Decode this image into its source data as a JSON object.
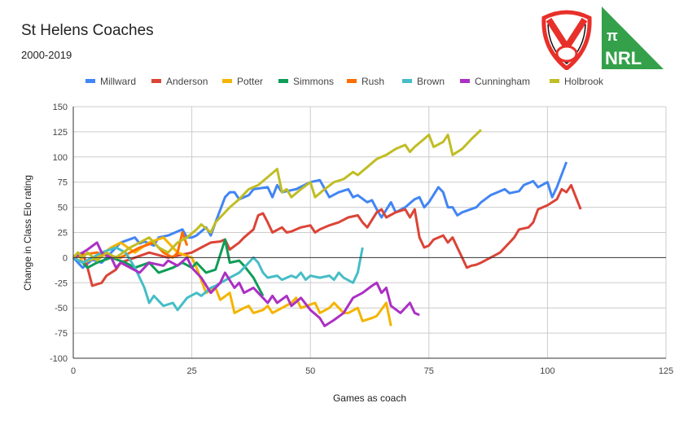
{
  "header": {
    "title": "St Helens Coaches",
    "subtitle": "2000-2019"
  },
  "logos": {
    "club_text": "St.Helens R.F.C.",
    "nrl_pi": "π",
    "nrl_text": "NRL",
    "nrl_color": "#34a04a",
    "club_color": "#e8302a"
  },
  "chart_data": {
    "type": "line",
    "title": "St Helens Coaches",
    "subtitle": "2000-2019",
    "xlabel": "Games as coach",
    "ylabel": "Change in Class Elo rating",
    "xlim": [
      0,
      125
    ],
    "ylim": [
      -100,
      150
    ],
    "xticks": [
      0,
      25,
      50,
      75,
      100,
      125
    ],
    "yticks": [
      -100,
      -75,
      -50,
      -25,
      0,
      25,
      50,
      75,
      100,
      125,
      150
    ],
    "grid": true,
    "legend": "top",
    "series": [
      {
        "name": "Millward",
        "color": "#4285f4",
        "x": [
          0,
          2,
          4,
          6,
          8,
          10,
          13,
          14,
          15,
          17,
          18,
          20,
          23,
          24,
          25,
          26,
          28,
          29,
          30,
          32,
          33,
          34,
          35,
          37,
          38,
          41,
          42,
          43,
          44,
          45,
          47,
          50,
          52,
          54,
          56,
          58,
          59,
          60,
          62,
          63,
          64,
          65,
          67,
          68,
          70,
          72,
          73,
          74,
          75,
          77,
          78,
          79,
          80,
          81,
          82,
          85,
          86,
          88,
          91,
          92,
          94,
          95,
          97,
          98,
          100,
          101,
          102,
          104
        ],
        "y": [
          0,
          -10,
          -2,
          -5,
          5,
          15,
          20,
          14,
          16,
          12,
          20,
          22,
          28,
          20,
          20,
          22,
          30,
          22,
          35,
          60,
          65,
          65,
          58,
          62,
          68,
          70,
          60,
          72,
          65,
          66,
          68,
          75,
          77,
          60,
          65,
          68,
          60,
          62,
          55,
          57,
          48,
          40,
          55,
          45,
          50,
          58,
          60,
          50,
          55,
          70,
          65,
          50,
          50,
          42,
          45,
          50,
          55,
          62,
          68,
          64,
          66,
          72,
          76,
          70,
          75,
          60,
          70,
          95
        ]
      },
      {
        "name": "Anderson",
        "color": "#db4437",
        "x": [
          0,
          2,
          3,
          4,
          6,
          7,
          9,
          10,
          13,
          16,
          20,
          25,
          27,
          29,
          31,
          32,
          33,
          35,
          36,
          38,
          39,
          40,
          41,
          42,
          44,
          45,
          46,
          48,
          50,
          51,
          52,
          54,
          56,
          58,
          60,
          61,
          62,
          64,
          65,
          66,
          68,
          70,
          71,
          72,
          73,
          74,
          75,
          76,
          78,
          79,
          80,
          81,
          82,
          83,
          84,
          85,
          86,
          88,
          90,
          92,
          93,
          94,
          96,
          97,
          98,
          100,
          101,
          102,
          103,
          104,
          105,
          106,
          107
        ],
        "y": [
          0,
          5,
          -10,
          -28,
          -25,
          -18,
          -12,
          -5,
          0,
          5,
          0,
          5,
          10,
          15,
          16,
          18,
          8,
          15,
          20,
          28,
          42,
          44,
          35,
          25,
          30,
          25,
          26,
          30,
          32,
          25,
          28,
          32,
          35,
          40,
          42,
          35,
          30,
          45,
          48,
          40,
          45,
          48,
          40,
          48,
          20,
          10,
          12,
          18,
          22,
          15,
          20,
          10,
          0,
          -10,
          -8,
          -7,
          -5,
          0,
          5,
          15,
          20,
          28,
          30,
          35,
          48,
          52,
          55,
          58,
          68,
          65,
          72,
          60,
          48
        ]
      },
      {
        "name": "Potter",
        "color": "#f4b400",
        "x": [
          0,
          1,
          2,
          5,
          8,
          10,
          13,
          16,
          19,
          22,
          25,
          26,
          28,
          30,
          31,
          33,
          34,
          36,
          37,
          38,
          40,
          41,
          42,
          44,
          46,
          47,
          48,
          51,
          52,
          54,
          55,
          57,
          58,
          60,
          61,
          63,
          64,
          66,
          67
        ],
        "y": [
          0,
          5,
          -5,
          0,
          10,
          15,
          5,
          15,
          20,
          5,
          0,
          -10,
          -35,
          -30,
          -42,
          -35,
          -55,
          -50,
          -48,
          -55,
          -52,
          -48,
          -55,
          -50,
          -45,
          -40,
          -50,
          -45,
          -55,
          -50,
          -45,
          -55,
          -55,
          -50,
          -63,
          -60,
          -58,
          -45,
          -68
        ]
      },
      {
        "name": "Simmons",
        "color": "#0f9d58",
        "x": [
          0,
          2,
          3,
          5,
          8,
          11,
          13,
          16,
          18,
          21,
          23,
          25,
          26,
          28,
          30,
          32,
          33,
          35,
          36,
          38,
          40
        ],
        "y": [
          0,
          -5,
          -10,
          -5,
          0,
          -5,
          -10,
          -5,
          -15,
          -10,
          -5,
          -10,
          -5,
          -15,
          -12,
          18,
          -5,
          -3,
          -8,
          -20,
          -38
        ]
      },
      {
        "name": "Rush",
        "color": "#ff6d00",
        "x": [
          0,
          2,
          5,
          7,
          10,
          12,
          14,
          17,
          19,
          21,
          22,
          23,
          24
        ],
        "y": [
          0,
          3,
          5,
          2,
          0,
          5,
          10,
          15,
          5,
          0,
          5,
          25,
          12
        ]
      },
      {
        "name": "Brown",
        "color": "#46bdc6",
        "x": [
          0,
          2,
          4,
          6,
          9,
          11,
          13,
          15,
          16,
          17,
          19,
          21,
          22,
          24,
          26,
          27,
          29,
          30,
          33,
          35,
          36,
          38,
          39,
          40,
          41,
          43,
          44,
          46,
          47,
          48,
          49,
          50,
          52,
          54,
          55,
          56,
          57,
          59,
          60,
          61
        ],
        "y": [
          0,
          -5,
          0,
          5,
          10,
          5,
          -10,
          -30,
          -45,
          -38,
          -48,
          -45,
          -52,
          -40,
          -35,
          -38,
          -30,
          -28,
          -20,
          -15,
          -10,
          0,
          -5,
          -15,
          -20,
          -18,
          -22,
          -18,
          -20,
          -15,
          -22,
          -18,
          -20,
          -18,
          -22,
          -15,
          -20,
          -25,
          -15,
          10
        ]
      },
      {
        "name": "Cunningham",
        "color": "#ab30c4",
        "x": [
          0,
          2,
          3,
          5,
          6,
          8,
          9,
          10,
          12,
          14,
          16,
          19,
          20,
          22,
          24,
          25,
          27,
          29,
          31,
          32,
          34,
          35,
          36,
          38,
          39,
          41,
          42,
          43,
          45,
          46,
          48,
          50,
          52,
          53,
          55,
          57,
          59,
          61,
          63,
          64,
          65,
          66,
          67,
          69,
          71,
          72,
          73
        ],
        "y": [
          0,
          5,
          8,
          15,
          5,
          0,
          -10,
          -5,
          -10,
          -15,
          -5,
          -8,
          -3,
          -8,
          0,
          -10,
          -20,
          -35,
          -25,
          -15,
          -30,
          -25,
          -35,
          -30,
          -35,
          -45,
          -38,
          -45,
          -38,
          -48,
          -40,
          -52,
          -60,
          -68,
          -62,
          -55,
          -40,
          -35,
          -28,
          -25,
          -35,
          -30,
          -48,
          -55,
          -45,
          -55,
          -57
        ]
      },
      {
        "name": "Holbrook",
        "color": "#c0bd25",
        "x": [
          0,
          1,
          2,
          3,
          5,
          7,
          9,
          12,
          14,
          16,
          18,
          20,
          22,
          24,
          26,
          27,
          29,
          30,
          31,
          33,
          35,
          37,
          39,
          41,
          43,
          44,
          45,
          46,
          48,
          50,
          51,
          53,
          55,
          57,
          59,
          60,
          62,
          64,
          66,
          68,
          70,
          71,
          72,
          74,
          75,
          76,
          78,
          79,
          80,
          82,
          84,
          86
        ],
        "y": [
          0,
          5,
          0,
          5,
          -3,
          5,
          0,
          10,
          15,
          20,
          10,
          5,
          15,
          20,
          28,
          33,
          25,
          35,
          40,
          50,
          58,
          68,
          72,
          80,
          88,
          65,
          68,
          60,
          68,
          75,
          60,
          68,
          75,
          78,
          85,
          82,
          90,
          98,
          102,
          108,
          112,
          105,
          110,
          118,
          122,
          110,
          115,
          122,
          102,
          108,
          118,
          127
        ]
      }
    ]
  }
}
